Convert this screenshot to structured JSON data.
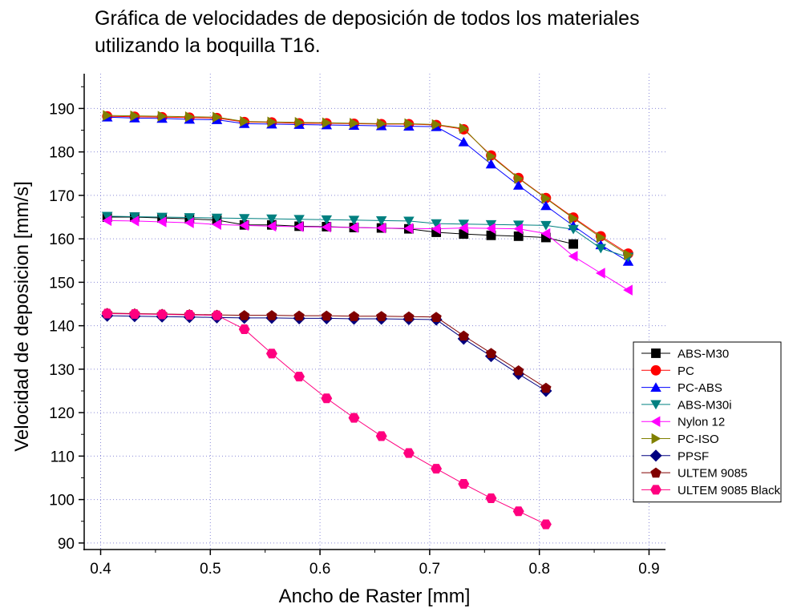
{
  "chart_data": {
    "type": "line",
    "title_lines": [
      "Gráfica de velocidades de deposición de todos los materiales",
      "utilizando la boquilla T16."
    ],
    "xlabel": "Ancho de Raster [mm]",
    "ylabel": "Velocidad de deposicion [mm/s]",
    "xlim": [
      0.385,
      0.915
    ],
    "ylim": [
      88.5,
      198
    ],
    "xticks": [
      0.4,
      0.5,
      0.6,
      0.7,
      0.8,
      0.9
    ],
    "xtick_labels": [
      "0.4",
      "0.5",
      "0.6",
      "0.7",
      "0.8",
      "0.9"
    ],
    "yticks": [
      90,
      100,
      110,
      120,
      130,
      140,
      150,
      160,
      170,
      180,
      190
    ],
    "ytick_labels": [
      "90",
      "100",
      "110",
      "120",
      "130",
      "140",
      "150",
      "160",
      "170",
      "180",
      "190"
    ],
    "grid": true,
    "legend_position": "right",
    "series": [
      {
        "name": "ABS-M30",
        "color": "#000000",
        "marker": "square",
        "x": [
          0.406,
          0.431,
          0.456,
          0.481,
          0.506,
          0.531,
          0.556,
          0.581,
          0.606,
          0.631,
          0.656,
          0.681,
          0.706,
          0.731,
          0.756,
          0.781,
          0.806,
          0.831
        ],
        "y": [
          165.0,
          165.0,
          164.8,
          164.6,
          164.3,
          163.2,
          163.2,
          162.9,
          162.8,
          162.6,
          162.5,
          162.3,
          161.5,
          161.1,
          160.8,
          160.6,
          160.3,
          158.8
        ]
      },
      {
        "name": "PC",
        "color": "#ff0000",
        "marker": "circle",
        "x": [
          0.406,
          0.431,
          0.456,
          0.481,
          0.506,
          0.531,
          0.556,
          0.581,
          0.606,
          0.631,
          0.656,
          0.681,
          0.706,
          0.731,
          0.756,
          0.781,
          0.806,
          0.831,
          0.856,
          0.881
        ],
        "y": [
          188.2,
          188.1,
          188.0,
          187.9,
          187.8,
          186.9,
          186.8,
          186.6,
          186.6,
          186.5,
          186.4,
          186.4,
          186.2,
          185.2,
          179.2,
          174.0,
          169.4,
          164.9,
          160.6,
          156.6
        ]
      },
      {
        "name": "PC-ABS",
        "color": "#0000ff",
        "marker": "triangle-up",
        "x": [
          0.406,
          0.431,
          0.456,
          0.481,
          0.506,
          0.531,
          0.556,
          0.581,
          0.606,
          0.631,
          0.656,
          0.681,
          0.706,
          0.731,
          0.756,
          0.781,
          0.806,
          0.831,
          0.856,
          0.881
        ],
        "y": [
          188.0,
          187.8,
          187.7,
          187.5,
          187.4,
          186.5,
          186.4,
          186.3,
          186.2,
          186.1,
          186.0,
          185.9,
          185.8,
          182.3,
          177.2,
          172.3,
          167.6,
          163.0,
          158.6,
          154.8
        ]
      },
      {
        "name": "ABS-M30i",
        "color": "#008080",
        "marker": "triangle-down",
        "x": [
          0.406,
          0.431,
          0.456,
          0.481,
          0.506,
          0.531,
          0.556,
          0.581,
          0.606,
          0.631,
          0.656,
          0.681,
          0.706,
          0.731,
          0.756,
          0.781,
          0.806,
          0.831,
          0.856,
          0.881
        ],
        "y": [
          165.2,
          165.1,
          165.0,
          164.9,
          164.8,
          164.7,
          164.6,
          164.5,
          164.4,
          164.3,
          164.2,
          164.1,
          163.5,
          163.4,
          163.3,
          163.2,
          163.1,
          162.2,
          157.8,
          155.8
        ]
      },
      {
        "name": "Nylon 12",
        "color": "#ff00ff",
        "marker": "triangle-left",
        "x": [
          0.406,
          0.431,
          0.456,
          0.481,
          0.506,
          0.531,
          0.556,
          0.581,
          0.606,
          0.631,
          0.656,
          0.681,
          0.706,
          0.731,
          0.756,
          0.781,
          0.806,
          0.831,
          0.856,
          0.881
        ],
        "y": [
          164.2,
          164.1,
          163.9,
          163.7,
          163.3,
          163.1,
          162.9,
          162.8,
          162.7,
          162.6,
          162.5,
          162.4,
          162.3,
          162.5,
          162.4,
          162.3,
          161.2,
          156.0,
          152.1,
          148.2
        ]
      },
      {
        "name": "PC-ISO",
        "color": "#808000",
        "marker": "triangle-right",
        "x": [
          0.406,
          0.431,
          0.456,
          0.481,
          0.506,
          0.531,
          0.556,
          0.581,
          0.606,
          0.631,
          0.656,
          0.681,
          0.706,
          0.731,
          0.756,
          0.781,
          0.806,
          0.831,
          0.856,
          0.881
        ],
        "y": [
          188.4,
          188.3,
          188.2,
          188.1,
          188.0,
          187.0,
          186.9,
          186.8,
          186.7,
          186.6,
          186.5,
          186.5,
          186.3,
          185.4,
          179.0,
          173.9,
          169.3,
          164.7,
          160.3,
          156.3
        ]
      },
      {
        "name": "PPSF",
        "color": "#000080",
        "marker": "diamond",
        "x": [
          0.406,
          0.431,
          0.456,
          0.481,
          0.506,
          0.531,
          0.556,
          0.581,
          0.606,
          0.631,
          0.656,
          0.681,
          0.706,
          0.731,
          0.756,
          0.781,
          0.806
        ],
        "y": [
          142.3,
          142.2,
          142.1,
          142.0,
          141.9,
          141.8,
          141.8,
          141.7,
          141.7,
          141.6,
          141.6,
          141.5,
          141.4,
          137.0,
          133.0,
          128.9,
          125.0
        ]
      },
      {
        "name": "ULTEM 9085",
        "color": "#800000",
        "marker": "pentagon",
        "x": [
          0.406,
          0.431,
          0.456,
          0.481,
          0.506,
          0.531,
          0.556,
          0.581,
          0.606,
          0.631,
          0.656,
          0.681,
          0.706,
          0.731,
          0.756,
          0.781,
          0.806
        ],
        "y": [
          142.9,
          142.8,
          142.7,
          142.6,
          142.5,
          142.4,
          142.4,
          142.3,
          142.3,
          142.2,
          142.2,
          142.1,
          142.0,
          137.7,
          133.7,
          129.7,
          125.7
        ]
      },
      {
        "name": "ULTEM 9085 Black",
        "color": "#ff007f",
        "marker": "hexagon",
        "x": [
          0.406,
          0.431,
          0.456,
          0.481,
          0.506,
          0.531,
          0.556,
          0.581,
          0.606,
          0.631,
          0.656,
          0.681,
          0.706,
          0.731,
          0.756,
          0.781,
          0.806
        ],
        "y": [
          142.8,
          142.7,
          142.6,
          142.5,
          142.4,
          139.2,
          133.6,
          128.3,
          123.3,
          118.8,
          114.6,
          110.7,
          107.1,
          103.6,
          100.3,
          97.3,
          94.3
        ]
      }
    ]
  }
}
